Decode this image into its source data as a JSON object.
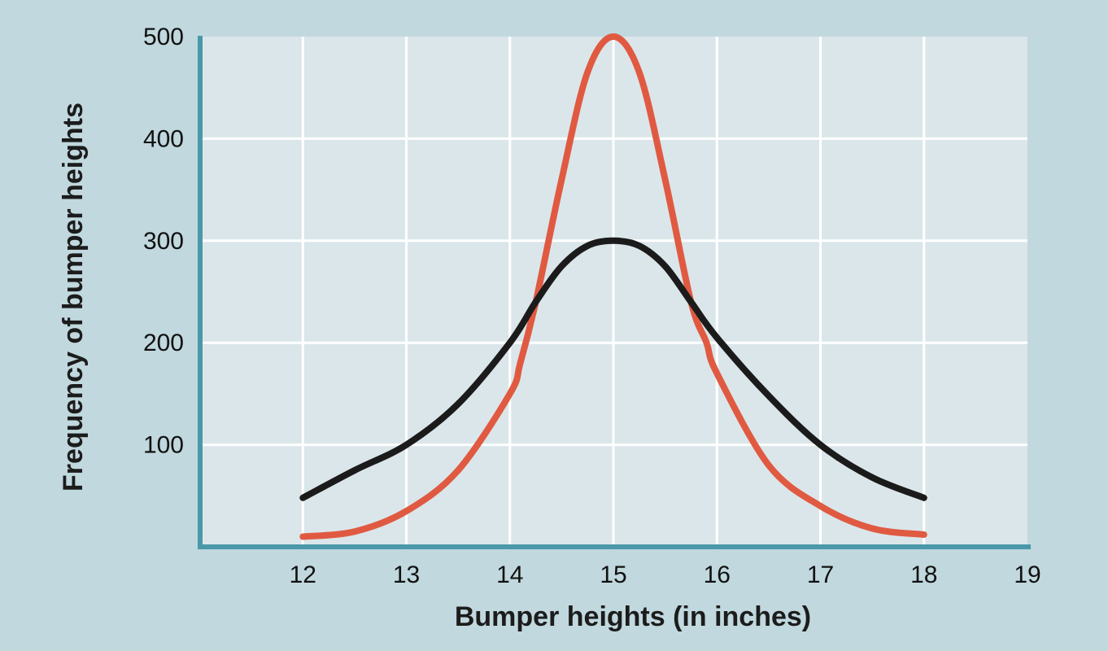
{
  "chart_data": {
    "type": "line",
    "title": "",
    "xlabel": "Bumper heights (in inches)",
    "ylabel": "Frequency of bumper heights",
    "xlim": [
      11,
      19
    ],
    "ylim": [
      0,
      500
    ],
    "xticks": [
      12,
      13,
      14,
      15,
      16,
      17,
      18,
      19
    ],
    "yticks": [
      100,
      200,
      300,
      400,
      500
    ],
    "grid": true,
    "legend": "none",
    "series": [
      {
        "color": "#e05a41",
        "x": [
          12,
          12.5,
          13,
          13.5,
          14,
          14.1,
          14.25,
          14.5,
          14.75,
          15,
          15.25,
          15.5,
          15.75,
          15.9,
          16,
          16.5,
          17,
          17.5,
          18
        ],
        "values": [
          10,
          15,
          35,
          75,
          150,
          180,
          240,
          360,
          465,
          500,
          465,
          360,
          240,
          200,
          170,
          80,
          40,
          18,
          12
        ]
      },
      {
        "color": "#1b1b1b",
        "x": [
          12,
          12.5,
          13,
          13.5,
          14,
          14.25,
          14.5,
          14.75,
          15,
          15.25,
          15.5,
          15.75,
          16,
          16.5,
          17,
          17.5,
          18
        ],
        "values": [
          48,
          75,
          100,
          140,
          200,
          240,
          275,
          295,
          300,
          295,
          275,
          240,
          205,
          148,
          100,
          68,
          48
        ]
      }
    ]
  },
  "colors": {
    "background": "#c0d8de",
    "plot_area": "#dbe6ea",
    "grid": "#ffffff",
    "axis": "#4a98a8"
  }
}
